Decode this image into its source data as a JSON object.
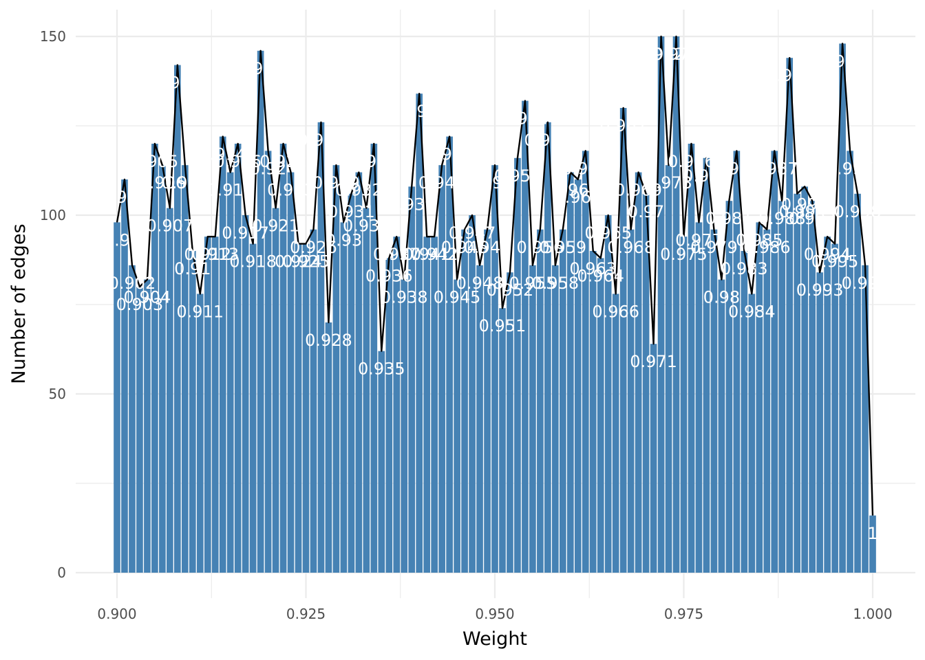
{
  "chart_data": {
    "type": "bar",
    "xlabel": "Weight",
    "ylabel": "Number of edges",
    "xlim": [
      0.895,
      1.005
    ],
    "ylim": [
      0,
      157
    ],
    "x_ticks": [
      "0.900",
      "0.925",
      "0.950",
      "0.975",
      "1.000"
    ],
    "y_ticks": [
      "0",
      "50",
      "100",
      "150"
    ],
    "grid": true,
    "colors": {
      "bar": "#4682b4",
      "line": "#000000",
      "grid": "#ebebeb",
      "label": "#ffffff"
    },
    "x": [
      0.9,
      0.901,
      0.902,
      0.903,
      0.904,
      0.905,
      0.906,
      0.907,
      0.908,
      0.909,
      0.91,
      0.911,
      0.912,
      0.913,
      0.914,
      0.915,
      0.916,
      0.917,
      0.918,
      0.919,
      0.92,
      0.921,
      0.922,
      0.923,
      0.924,
      0.925,
      0.926,
      0.927,
      0.928,
      0.929,
      0.93,
      0.931,
      0.932,
      0.933,
      0.934,
      0.935,
      0.936,
      0.937,
      0.938,
      0.939,
      0.94,
      0.941,
      0.942,
      0.943,
      0.944,
      0.945,
      0.946,
      0.947,
      0.948,
      0.949,
      0.95,
      0.951,
      0.952,
      0.953,
      0.954,
      0.955,
      0.956,
      0.957,
      0.958,
      0.959,
      0.96,
      0.961,
      0.962,
      0.963,
      0.964,
      0.965,
      0.966,
      0.967,
      0.968,
      0.969,
      0.97,
      0.971,
      0.972,
      0.973,
      0.974,
      0.975,
      0.976,
      0.977,
      0.978,
      0.979,
      0.98,
      0.981,
      0.982,
      0.983,
      0.984,
      0.985,
      0.986,
      0.987,
      0.988,
      0.989,
      0.99,
      0.991,
      0.992,
      0.993,
      0.994,
      0.995,
      0.996,
      0.997,
      0.998,
      0.999,
      1.0
    ],
    "values": [
      98,
      110,
      86,
      80,
      82,
      120,
      114,
      102,
      142,
      114,
      90,
      78,
      94,
      94,
      122,
      112,
      120,
      100,
      92,
      146,
      118,
      102,
      120,
      112,
      92,
      92,
      96,
      126,
      70,
      114,
      98,
      106,
      112,
      102,
      120,
      62,
      88,
      94,
      82,
      108,
      134,
      94,
      94,
      114,
      122,
      82,
      96,
      100,
      86,
      96,
      114,
      74,
      84,
      116,
      132,
      86,
      96,
      126,
      86,
      96,
      112,
      110,
      118,
      90,
      88,
      100,
      78,
      130,
      96,
      112,
      106,
      64,
      150,
      114,
      150,
      94,
      120,
      98,
      116,
      96,
      82,
      104,
      118,
      90,
      78,
      98,
      96,
      118,
      104,
      144,
      106,
      108,
      104,
      84,
      94,
      92,
      148,
      118,
      106,
      86,
      16
    ],
    "labels": [
      "0.9",
      "0.901",
      "0.902",
      "0.903",
      "0.904",
      "0.905",
      "0.906",
      "0.907",
      "0.908",
      "0.909",
      "0.91",
      "0.911",
      "0.912",
      "0.913",
      "0.914",
      "0.915",
      "0.916",
      "0.917",
      "0.918",
      "0.919",
      "0.92",
      "0.921",
      "0.922",
      "0.923",
      "0.924",
      "0.925",
      "0.926",
      "0.927",
      "0.928",
      "0.929",
      "0.93",
      "0.931",
      "0.932",
      "0.933",
      "0.934",
      "0.935",
      "0.936",
      "0.937",
      "0.938",
      "0.939",
      "0.94",
      "0.941",
      "0.942",
      "0.943",
      "0.944",
      "0.945",
      "0.946",
      "0.947",
      "0.948",
      "0.949",
      "0.95",
      "0.951",
      "0.952",
      "0.953",
      "0.954",
      "0.955",
      "0.956",
      "0.957",
      "0.958",
      "0.959",
      "0.96",
      "0.961",
      "0.962",
      "0.963",
      "0.964",
      "0.965",
      "0.966",
      "0.967",
      "0.968",
      "0.969",
      "0.97",
      "0.971",
      "0.972",
      "0.973",
      "0.974",
      "0.975",
      "0.976",
      "0.977",
      "0.978",
      "0.979",
      "0.98",
      "0.981",
      "0.982",
      "0.983",
      "0.984",
      "0.985",
      "0.986",
      "0.987",
      "0.988",
      "0.989",
      "0.99",
      "0.991",
      "0.992",
      "0.993",
      "0.994",
      "0.995",
      "0.996",
      "0.997",
      "0.998",
      "0.999",
      "1"
    ]
  }
}
